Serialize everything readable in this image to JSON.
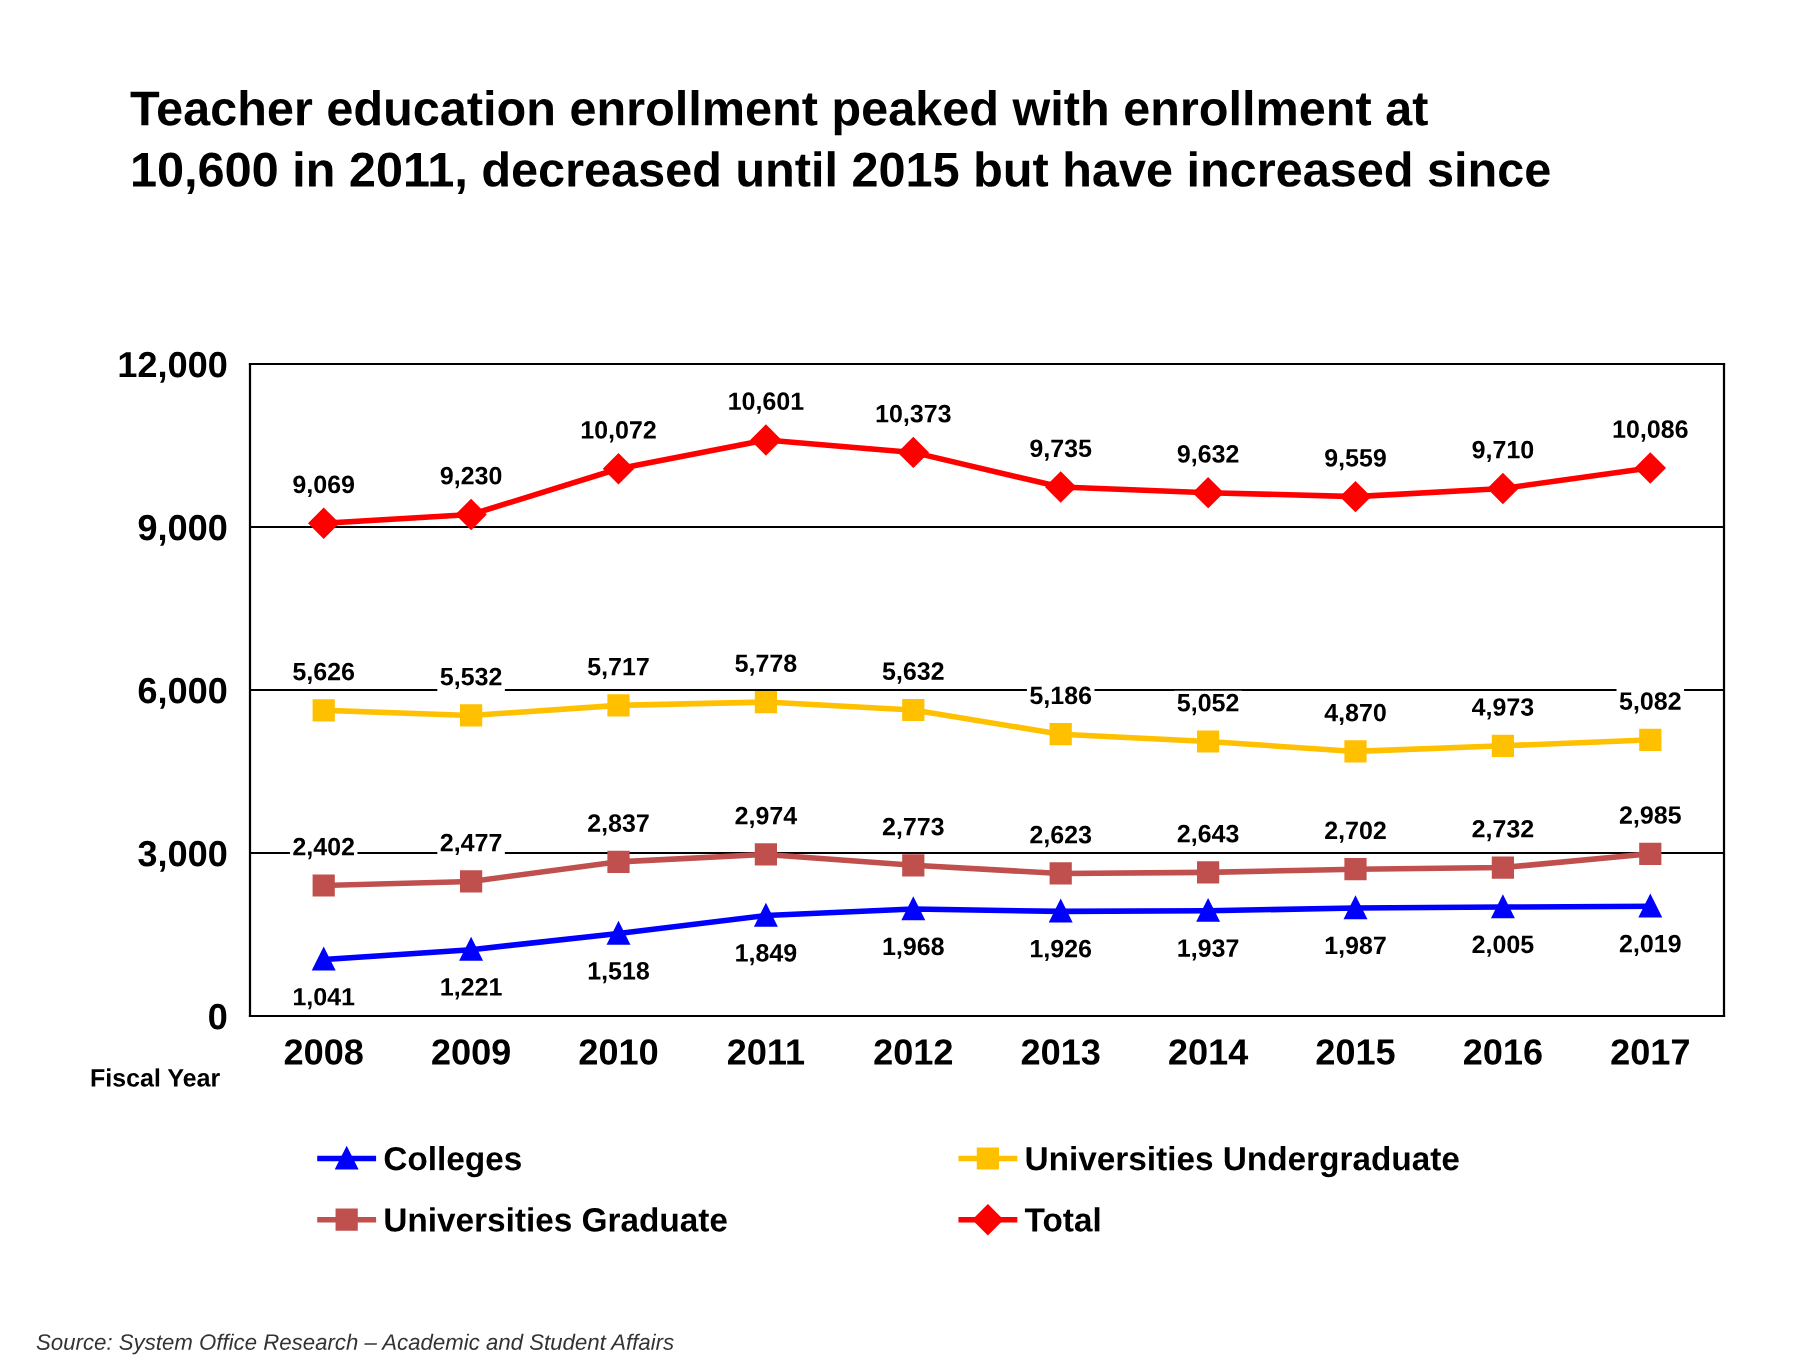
{
  "chart_data": {
    "type": "line",
    "title": "Teacher education enrollment peaked with enrollment at\n10,600 in 2011, decreased until 2015 but have increased since",
    "xlabel": "Fiscal Year",
    "categories": [
      "2008",
      "2009",
      "2010",
      "2011",
      "2012",
      "2013",
      "2014",
      "2015",
      "2016",
      "2017"
    ],
    "series": [
      {
        "name": "Colleges",
        "color": "#0000ff",
        "marker": "triangle",
        "values": [
          1041,
          1221,
          1518,
          1849,
          1968,
          1926,
          1937,
          1987,
          2005,
          2019
        ],
        "value_labels": [
          "1,041",
          "1,221",
          "1,518",
          "1,849",
          "1,968",
          "1,926",
          "1,937",
          "1,987",
          "2,005",
          "2,019"
        ]
      },
      {
        "name": "Universities Undergraduate",
        "color": "#ffc000",
        "marker": "square",
        "values": [
          5626,
          5532,
          5717,
          5778,
          5632,
          5186,
          5052,
          4870,
          4973,
          5082
        ],
        "value_labels": [
          "5,626",
          "5,532",
          "5,717",
          "5,778",
          "5,632",
          "5,186",
          "5,052",
          "4,870",
          "4,973",
          "5,082"
        ]
      },
      {
        "name": "Universities Graduate",
        "color": "#c0504d",
        "marker": "square",
        "values": [
          2402,
          2477,
          2837,
          2974,
          2773,
          2623,
          2643,
          2702,
          2732,
          2985
        ],
        "value_labels": [
          "2,402",
          "2,477",
          "2,837",
          "2,974",
          "2,773",
          "2,623",
          "2,643",
          "2,702",
          "2,732",
          "2,985"
        ]
      },
      {
        "name": "Total",
        "color": "#ff0000",
        "marker": "diamond",
        "values": [
          9069,
          9230,
          10072,
          10601,
          10373,
          9735,
          9632,
          9559,
          9710,
          10086
        ],
        "value_labels": [
          "9,069",
          "9,230",
          "10,072",
          "10,601",
          "10,373",
          "9,735",
          "9,632",
          "9,559",
          "9,710",
          "10,086"
        ]
      }
    ],
    "ylim": [
      0,
      12000
    ],
    "yticks": [
      {
        "value": 0,
        "label": "0"
      },
      {
        "value": 3000,
        "label": "3,000"
      },
      {
        "value": 6000,
        "label": "6,000"
      },
      {
        "value": 9000,
        "label": "9,000"
      },
      {
        "value": 12000,
        "label": "12,000"
      }
    ],
    "grid": "y",
    "legend": "bottom",
    "annotations": [
      "Source: System Office Research – Academic and Student Affairs"
    ]
  }
}
